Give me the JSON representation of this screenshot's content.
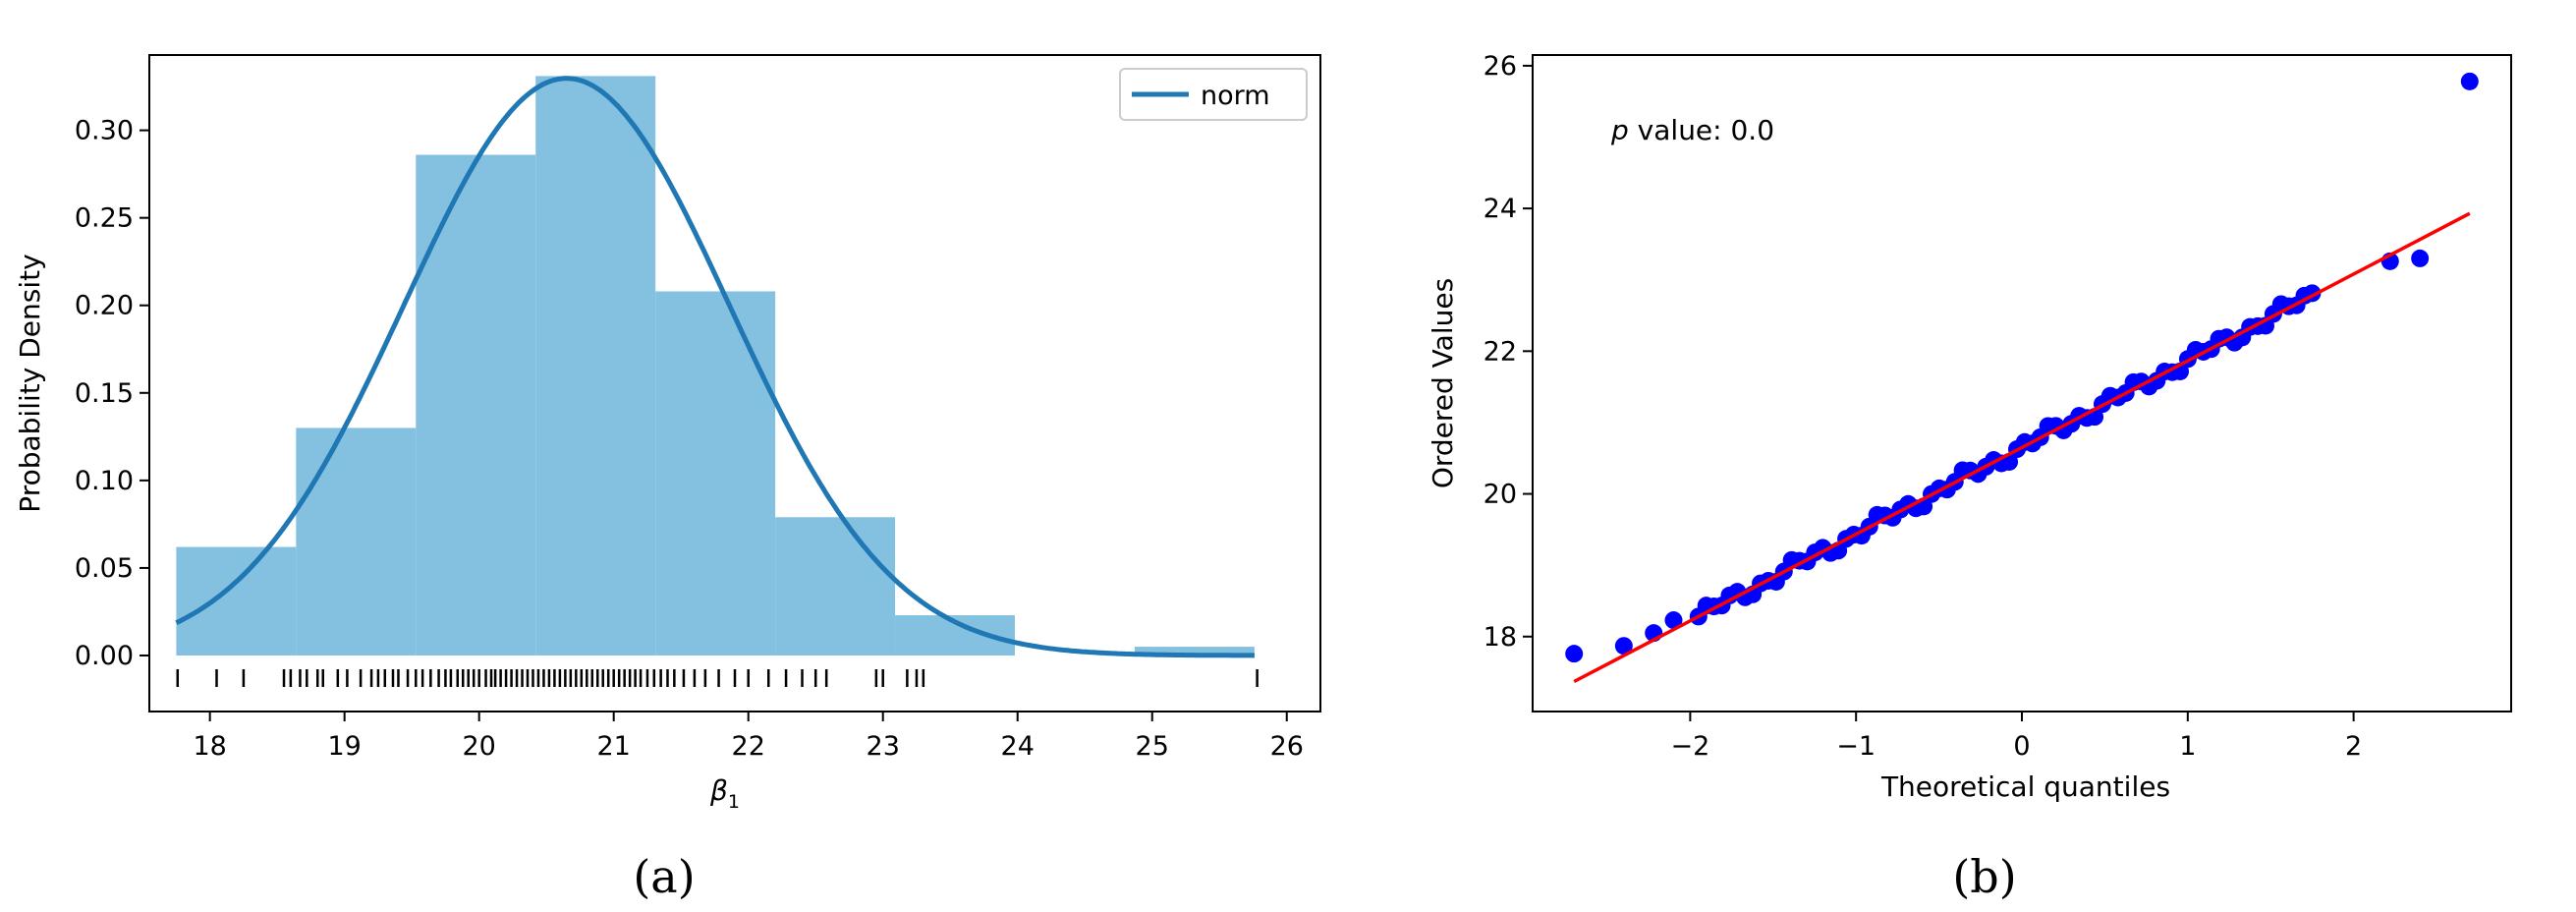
{
  "chart_data": [
    {
      "type": "histogram",
      "panel_label": "(a)",
      "xlabel_symbol": "β",
      "xlabel_sub": "1",
      "ylabel": "Probability Density",
      "xlim": [
        17.55,
        26.25
      ],
      "ylim": [
        -0.032,
        0.343
      ],
      "xticks": [
        18,
        19,
        20,
        21,
        22,
        23,
        24,
        25,
        26
      ],
      "yticks": [
        0.0,
        0.05,
        0.1,
        0.15,
        0.2,
        0.25,
        0.3
      ],
      "ytick_labels": [
        "0.00",
        "0.05",
        "0.10",
        "0.15",
        "0.20",
        "0.25",
        "0.30"
      ],
      "bins": [
        {
          "from": 17.75,
          "to": 18.64,
          "density": 0.062
        },
        {
          "from": 18.64,
          "to": 19.53,
          "density": 0.13
        },
        {
          "from": 19.53,
          "to": 20.42,
          "density": 0.286
        },
        {
          "from": 20.42,
          "to": 21.31,
          "density": 0.331
        },
        {
          "from": 21.31,
          "to": 22.2,
          "density": 0.208
        },
        {
          "from": 22.2,
          "to": 23.09,
          "density": 0.079
        },
        {
          "from": 23.09,
          "to": 23.98,
          "density": 0.023
        },
        {
          "from": 23.98,
          "to": 24.87,
          "density": 0.0
        },
        {
          "from": 24.87,
          "to": 25.76,
          "density": 0.005
        }
      ],
      "fit": {
        "name": "norm",
        "mean": 20.65,
        "sd": 1.21
      },
      "legend": {
        "label": "norm",
        "position": "top-right"
      },
      "rug": [
        17.76,
        18.05,
        18.25,
        18.55,
        18.6,
        18.67,
        18.72,
        18.8,
        18.84,
        18.95,
        19.02,
        19.12,
        19.2,
        19.25,
        19.3,
        19.36,
        19.4,
        19.47,
        19.53,
        19.58,
        19.64,
        19.7,
        19.75,
        19.79,
        19.84,
        19.88,
        19.92,
        19.96,
        20.0,
        20.05,
        20.09,
        20.12,
        20.16,
        20.2,
        20.24,
        20.28,
        20.32,
        20.36,
        20.4,
        20.44,
        20.48,
        20.52,
        20.56,
        20.6,
        20.64,
        20.68,
        20.72,
        20.76,
        20.8,
        20.84,
        20.88,
        20.92,
        20.96,
        21.0,
        21.04,
        21.08,
        21.12,
        21.16,
        21.2,
        21.25,
        21.3,
        21.35,
        21.4,
        21.45,
        21.52,
        21.6,
        21.68,
        21.78,
        21.9,
        22.0,
        22.15,
        22.28,
        22.4,
        22.5,
        22.58,
        22.95,
        23.0,
        23.18,
        23.25,
        23.3,
        25.78
      ]
    },
    {
      "type": "scatter",
      "panel_label": "(b)",
      "xlabel": "Theoretical quantiles",
      "ylabel": "Ordered Values",
      "annotation_italic": "p",
      "annotation_rest": " value: 0.0",
      "xlim": [
        -2.95,
        2.95
      ],
      "ylim": [
        16.95,
        26.15
      ],
      "xticks": [
        -2,
        -1,
        0,
        1,
        2
      ],
      "xtick_labels": [
        "−2",
        "−1",
        "0",
        "1",
        "2"
      ],
      "yticks": [
        18,
        20,
        22,
        24,
        26
      ],
      "fit_line": {
        "x": [
          -2.7,
          2.7
        ],
        "y": [
          17.37,
          23.93
        ]
      },
      "outliers": [
        [
          -2.7,
          17.76
        ],
        [
          -2.4,
          17.87
        ],
        [
          -2.22,
          18.05
        ],
        [
          -2.1,
          18.23
        ],
        [
          2.22,
          23.26
        ],
        [
          2.4,
          23.3
        ],
        [
          2.7,
          25.78
        ]
      ],
      "n_points": 80,
      "base_slope": 1.215,
      "base_intercept": 20.65
    }
  ]
}
